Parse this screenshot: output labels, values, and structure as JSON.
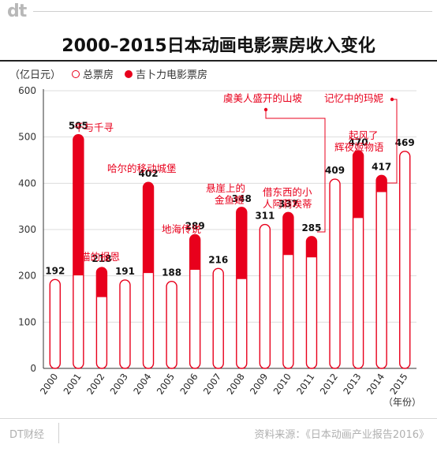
{
  "header": {
    "logo_text": "dt",
    "title": "2000–2015日本动画电影票房收入变化"
  },
  "legend": {
    "unit": "（亿日元）",
    "total_label": "总票房",
    "ghibli_label": "吉卜力电影票房"
  },
  "colors": {
    "accent": "#e8001c",
    "bar_fill": "#ffffff",
    "axis": "#333333",
    "grid": "#dddddd"
  },
  "chart_data": {
    "type": "bar",
    "categories": [
      "2000",
      "2001",
      "2002",
      "2003",
      "2004",
      "2005",
      "2006",
      "2007",
      "2008",
      "2009",
      "2010",
      "2011",
      "2012",
      "2013",
      "2014",
      "2015"
    ],
    "series": [
      {
        "name": "总票房",
        "values": [
          192,
          505,
          218,
          191,
          402,
          188,
          289,
          216,
          348,
          311,
          337,
          285,
          409,
          470,
          417,
          469
        ]
      },
      {
        "name": "吉卜力电影票房",
        "values": [
          0,
          304,
          64,
          0,
          196,
          0,
          76,
          0,
          155,
          0,
          92,
          45,
          0,
          145,
          36,
          0
        ]
      }
    ],
    "value_labels": [
      "192",
      "505",
      "218",
      "191",
      "402",
      "188",
      "289",
      "216",
      "348",
      "311",
      "337",
      "285",
      "409",
      "470",
      "417",
      "469"
    ],
    "ylim": [
      0,
      600
    ],
    "yticks": [
      "0",
      "100",
      "200",
      "300",
      "400",
      "500",
      "600"
    ],
    "xlabel": "（年份）",
    "grid": "horizontal",
    "annotations": [
      {
        "text": "千与千寻",
        "index": 1
      },
      {
        "text": "猫的报恩",
        "index": 2
      },
      {
        "text": "哈尔的移动城堡",
        "index": 4
      },
      {
        "text": "地海传说",
        "index": 6
      },
      {
        "text": "悬崖上的",
        "index": 8
      },
      {
        "text": "金鱼姬",
        "index": 8
      },
      {
        "text": "借东西的小",
        "index": 10
      },
      {
        "text": "人阿莉埃蒂",
        "index": 10
      },
      {
        "text": "虞美人盛开的山坡",
        "index": 11
      },
      {
        "text": "起风了",
        "index": 13
      },
      {
        "text": "辉夜姬物语",
        "index": 13
      },
      {
        "text": "记忆中的玛妮",
        "index": 14
      }
    ]
  },
  "footer": {
    "brand": "DT财经",
    "source": "资料来源：《日本动画产业报告2016》"
  }
}
